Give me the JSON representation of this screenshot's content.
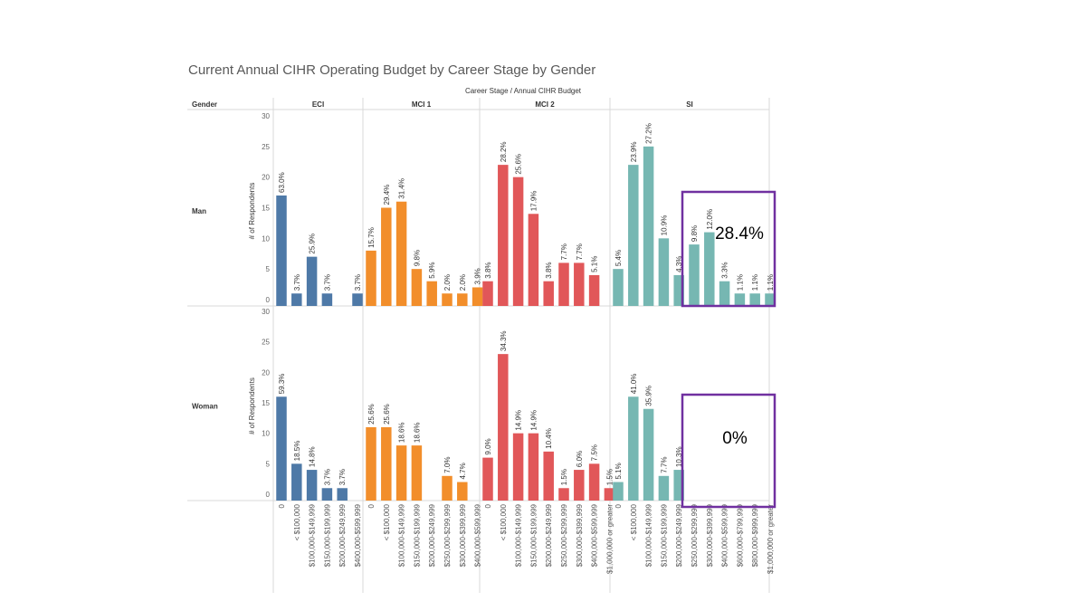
{
  "title": "Current Annual CIHR Operating Budget by Career Stage by Gender",
  "column_header": "Career Stage / Annual CIHR Budget",
  "row_header": "Gender",
  "y_axis_title": "# of Respondents",
  "colors": {
    "ECI": "#4e79a7",
    "MCI 1": "#f28e2b",
    "MCI 2": "#e15759",
    "SI": "#76b7b2",
    "box": "#7030a0"
  },
  "chart_data": {
    "type": "bar",
    "ylim": [
      0,
      30
    ],
    "yticks": [
      0,
      5,
      10,
      15,
      20,
      25,
      30
    ],
    "stages": [
      "ECI",
      "MCI 1",
      "MCI 2",
      "SI"
    ],
    "genders": [
      "Man",
      "Woman"
    ],
    "panels": [
      {
        "gender": "Man",
        "stage": "ECI",
        "categories": [
          "0",
          "< $100,000",
          "$100,000-$149,999",
          "$150,000-$199,999",
          "$200,000-$249,999",
          "$400,000-$599,999"
        ],
        "values": [
          17,
          1,
          7,
          1,
          0,
          1
        ],
        "labels": [
          "63.0%",
          "3.7%",
          "25.9%",
          "3.7%",
          "",
          "3.7%"
        ]
      },
      {
        "gender": "Man",
        "stage": "MCI 1",
        "categories": [
          "0",
          "< $100,000",
          "$100,000-$149,999",
          "$150,000-$199,999",
          "$200,000-$249,999",
          "$250,000-$299,999",
          "$300,000-$399,999",
          "$400,000-$599,999"
        ],
        "values": [
          8,
          15,
          16,
          5,
          3,
          1,
          1,
          2
        ],
        "labels": [
          "15.7%",
          "29.4%",
          "31.4%",
          "9.8%",
          "5.9%",
          "2.0%",
          "2.0%",
          "3.9%"
        ]
      },
      {
        "gender": "Man",
        "stage": "MCI 2",
        "categories": [
          "0",
          "< $100,000",
          "$100,000-$149,999",
          "$150,000-$199,999",
          "$200,000-$249,999",
          "$250,000-$299,999",
          "$300,000-$399,999",
          "$400,000-$599,999",
          "$1,000,000 or greater"
        ],
        "values": [
          3,
          22,
          20,
          14,
          3,
          6,
          6,
          4,
          0
        ],
        "labels": [
          "3.8%",
          "28.2%",
          "25.6%",
          "17.9%",
          "3.8%",
          "7.7%",
          "7.7%",
          "5.1%",
          ""
        ]
      },
      {
        "gender": "Man",
        "stage": "SI",
        "categories": [
          "0",
          "< $100,000",
          "$100,000-$149,999",
          "$150,000-$199,999",
          "$200,000-$249,999",
          "$250,000-$299,999",
          "$300,000-$399,999",
          "$400,000-$599,999",
          "$600,000-$799,999",
          "$800,000-$999,999",
          "$1,000,000 or greater"
        ],
        "values": [
          5,
          22,
          25,
          10,
          4,
          9,
          11,
          3,
          1,
          1,
          1
        ],
        "labels": [
          "5.4%",
          "23.9%",
          "27.2%",
          "10.9%",
          "4.3%",
          "9.8%",
          "12.0%",
          "3.3%",
          "1.1%",
          "1.1%",
          "1.1%"
        ]
      },
      {
        "gender": "Woman",
        "stage": "ECI",
        "categories": [
          "0",
          "< $100,000",
          "$100,000-$149,999",
          "$150,000-$199,999",
          "$200,000-$249,999",
          "$400,000-$599,999"
        ],
        "values": [
          16,
          5,
          4,
          1,
          1,
          0
        ],
        "labels": [
          "59.3%",
          "18.5%",
          "14.8%",
          "3.7%",
          "3.7%",
          ""
        ]
      },
      {
        "gender": "Woman",
        "stage": "MCI 1",
        "categories": [
          "0",
          "< $100,000",
          "$100,000-$149,999",
          "$150,000-$199,999",
          "$200,000-$249,999",
          "$250,000-$299,999",
          "$300,000-$399,999",
          "$400,000-$599,999"
        ],
        "values": [
          11,
          11,
          8,
          8,
          0,
          3,
          2,
          0
        ],
        "labels": [
          "25.6%",
          "25.6%",
          "18.6%",
          "18.6%",
          "",
          "7.0%",
          "4.7%",
          ""
        ]
      },
      {
        "gender": "Woman",
        "stage": "MCI 2",
        "categories": [
          "0",
          "< $100,000",
          "$100,000-$149,999",
          "$150,000-$199,999",
          "$200,000-$249,999",
          "$250,000-$299,999",
          "$300,000-$399,999",
          "$400,000-$599,999",
          "$1,000,000 or greater"
        ],
        "values": [
          6,
          23,
          10,
          10,
          7,
          1,
          4,
          5,
          1
        ],
        "labels": [
          "9.0%",
          "34.3%",
          "14.9%",
          "14.9%",
          "10.4%",
          "1.5%",
          "6.0%",
          "7.5%",
          "1.5%"
        ]
      },
      {
        "gender": "Woman",
        "stage": "SI",
        "categories": [
          "0",
          "< $100,000",
          "$100,000-$149,999",
          "$150,000-$199,999",
          "$200,000-$249,999",
          "$250,000-$299,999",
          "$300,000-$399,999",
          "$400,000-$599,999",
          "$600,000-$799,999",
          "$800,000-$999,999",
          "$1,000,000 or greater"
        ],
        "values": [
          2,
          16,
          14,
          3,
          4,
          0,
          0,
          0,
          0,
          0,
          0
        ],
        "labels": [
          "5.1%",
          "41.0%",
          "35.9%",
          "7.7%",
          "10.3%",
          "",
          "",
          "",
          "",
          "",
          ""
        ]
      }
    ],
    "annotations": [
      {
        "gender": "Man",
        "stage": "SI",
        "text": "28.4%"
      },
      {
        "gender": "Woman",
        "stage": "SI",
        "text": "0%"
      }
    ]
  }
}
